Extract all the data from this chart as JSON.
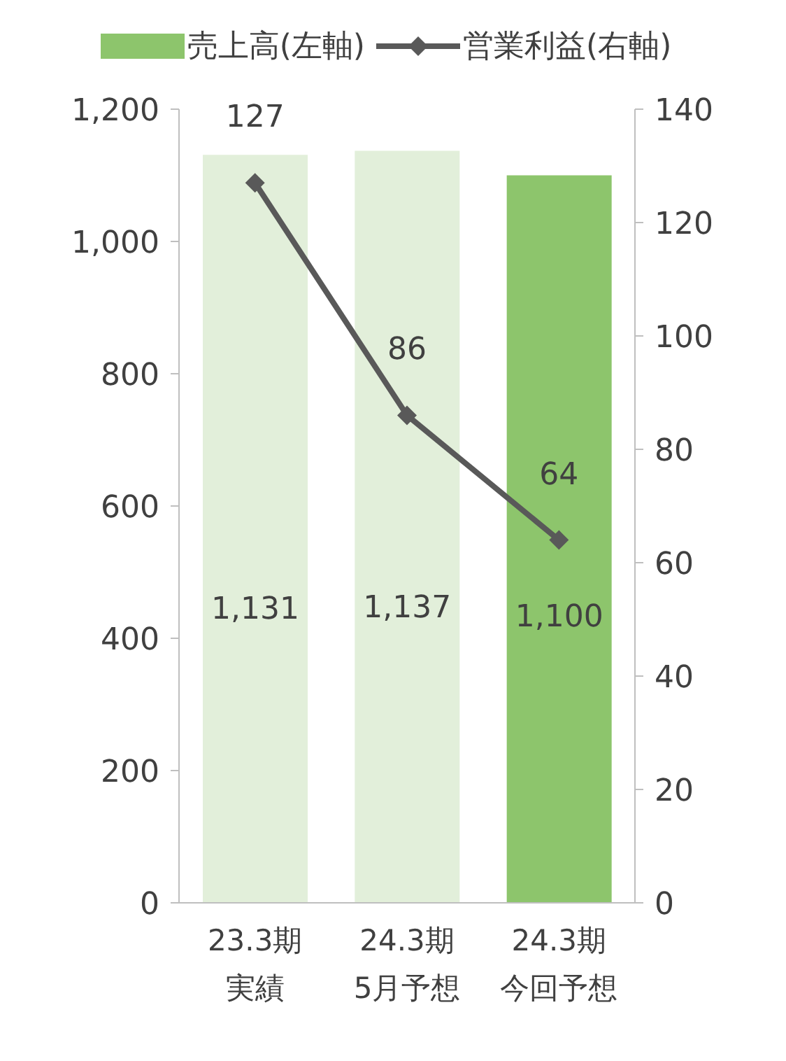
{
  "chart_data": {
    "type": "bar",
    "categories": [
      "23.3期実績",
      "24.3期5月予想",
      "24.3期今回予想"
    ],
    "series": [
      {
        "name": "売上高(左軸)",
        "color": "#e2efda",
        "colors": [
          "#e2efda",
          "#e2efda",
          "#8dc56c"
        ],
        "values": [
          1131,
          1137,
          1100
        ],
        "value_labels": [
          "1,131",
          "1,137",
          "1,100"
        ]
      },
      {
        "name": "営業利益(右軸)",
        "type": "line",
        "axis": "y2",
        "color": "#595959",
        "values": [
          127,
          86,
          64
        ],
        "value_labels": [
          "127",
          "86",
          "64"
        ],
        "marker": "diamond"
      }
    ],
    "ylim": [
      0,
      1200
    ],
    "yticks": [
      0,
      200,
      400,
      600,
      800,
      {
        "value": 1000,
        "label": "1,000"
      },
      {
        "value": 1200,
        "label": "1,200"
      }
    ],
    "y2lim": [
      0,
      140
    ],
    "y2ticks": [
      0,
      20,
      40,
      60,
      80,
      100,
      120,
      140
    ],
    "grid": false,
    "legend": "top"
  }
}
